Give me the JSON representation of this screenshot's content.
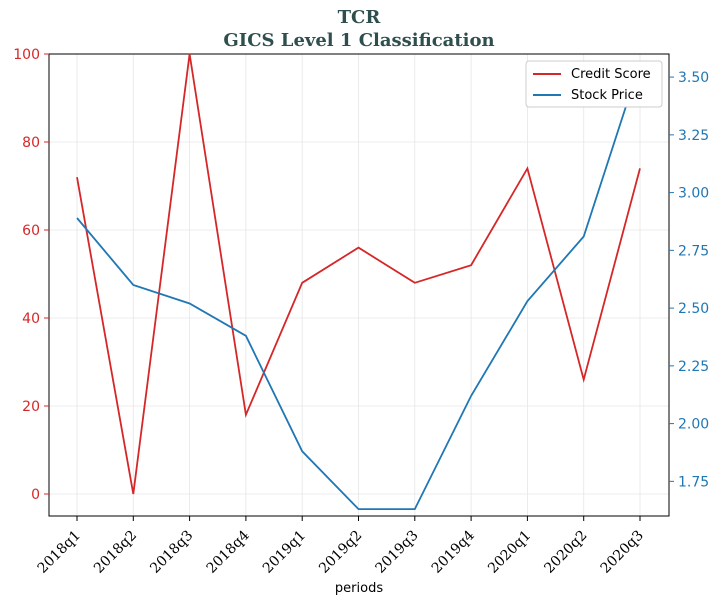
{
  "chart_data": {
    "type": "line",
    "title": "TCR",
    "subtitle": "GICS Level 1 Classification",
    "xlabel": "periods",
    "ylabel_left": "",
    "ylabel_right": "",
    "categories": [
      "2018q1",
      "2018q2",
      "2018q3",
      "2018q4",
      "2019q1",
      "2019q2",
      "2019q3",
      "2019q4",
      "2020q1",
      "2020q2",
      "2020q3"
    ],
    "series": [
      {
        "name": "Credit Score",
        "axis": "left",
        "color": "#d62728",
        "values": [
          72,
          0,
          100,
          18,
          48,
          56,
          48,
          52,
          74,
          26,
          74
        ]
      },
      {
        "name": "Stock Price",
        "axis": "right",
        "color": "#1f77b4",
        "values": [
          2.89,
          2.6,
          2.52,
          2.38,
          1.88,
          1.63,
          1.63,
          2.12,
          2.53,
          2.81,
          3.56
        ]
      }
    ],
    "ylim_left": [
      -5,
      100
    ],
    "yticks_left": [
      "0",
      "20",
      "40",
      "60",
      "80",
      "100"
    ],
    "ylim_right": [
      1.6,
      3.6
    ],
    "yticks_right": [
      "1.75",
      "2.00",
      "2.25",
      "2.50",
      "2.75",
      "3.00",
      "3.25",
      "3.50"
    ],
    "grid": true,
    "legend_position": "upper-right",
    "colors": {
      "left_axis": "#d62728",
      "right_axis": "#1f77b4",
      "title": "#2f4f4f"
    }
  }
}
